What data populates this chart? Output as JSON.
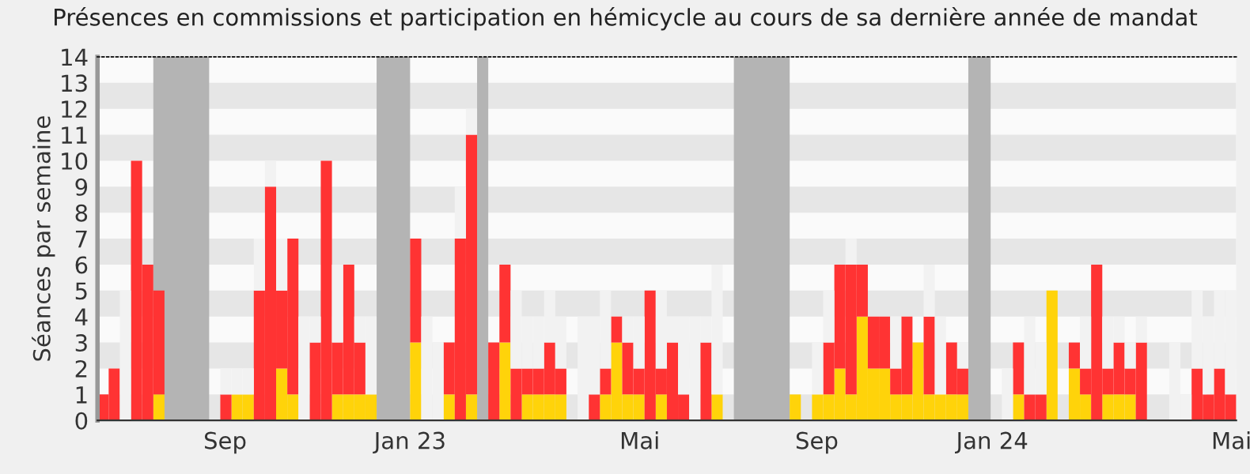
{
  "chart_data": {
    "type": "bar",
    "stacked": true,
    "title": "Présences en commissions et participation en hémicycle au cours de sa dernière année de mandat",
    "ylabel": "Séances par semaine",
    "x": [
      "2022-06-20",
      "2022-06-27",
      "2022-07-04",
      "2022-07-11",
      "2022-07-18",
      "2022-07-25",
      "2022-08-01",
      "2022-08-08",
      "2022-08-15",
      "2022-08-22",
      "2022-08-29",
      "2022-09-05",
      "2022-09-12",
      "2022-09-19",
      "2022-09-26",
      "2022-10-03",
      "2022-10-10",
      "2022-10-17",
      "2022-10-24",
      "2022-10-31",
      "2022-11-07",
      "2022-11-14",
      "2022-11-21",
      "2022-11-28",
      "2022-12-05",
      "2022-12-12",
      "2022-12-19",
      "2022-12-26",
      "2023-01-02",
      "2023-01-09",
      "2023-01-16",
      "2023-01-23",
      "2023-01-30",
      "2023-02-06",
      "2023-02-13",
      "2023-02-20",
      "2023-02-27",
      "2023-03-06",
      "2023-03-13",
      "2023-03-20",
      "2023-03-27",
      "2023-04-03",
      "2023-04-10",
      "2023-04-17",
      "2023-04-24",
      "2023-05-01",
      "2023-05-08",
      "2023-05-15",
      "2023-05-22",
      "2023-05-29",
      "2023-06-05",
      "2023-06-12",
      "2023-06-19",
      "2023-06-26",
      "2023-07-03",
      "2023-07-10",
      "2023-07-17",
      "2023-07-24",
      "2023-07-31",
      "2023-08-07",
      "2023-08-14",
      "2023-08-21",
      "2023-08-28",
      "2023-09-04",
      "2023-09-11",
      "2023-09-18",
      "2023-09-25",
      "2023-10-02",
      "2023-10-09",
      "2023-10-16",
      "2023-10-23",
      "2023-10-30",
      "2023-11-06",
      "2023-11-13",
      "2023-11-20",
      "2023-11-27",
      "2023-12-04",
      "2023-12-11",
      "2023-12-18",
      "2023-12-25",
      "2024-01-01",
      "2024-01-08",
      "2024-01-15",
      "2024-01-22",
      "2024-01-29",
      "2024-02-05",
      "2024-02-12",
      "2024-02-19",
      "2024-02-26",
      "2024-03-04",
      "2024-03-11",
      "2024-03-18",
      "2024-03-25",
      "2024-04-01",
      "2024-04-08",
      "2024-04-15",
      "2024-04-22",
      "2024-04-29",
      "2024-05-06",
      "2024-05-13",
      "2024-05-20",
      "2024-05-27"
    ],
    "series": [
      {
        "color": "#ffd30a",
        "values": [
          0,
          0,
          0,
          0,
          0,
          1,
          0,
          0,
          0,
          0,
          0,
          0,
          1,
          1,
          0,
          0,
          2,
          1,
          0,
          0,
          0,
          1,
          1,
          1,
          1,
          0,
          0,
          0,
          3,
          0,
          0,
          1,
          0,
          1,
          0,
          0,
          3,
          0,
          1,
          1,
          1,
          1,
          0,
          0,
          0,
          1,
          3,
          1,
          1,
          0,
          1,
          0,
          0,
          0,
          0,
          1,
          0,
          0,
          0,
          0,
          0,
          0,
          1,
          0,
          1,
          1,
          2,
          1,
          4,
          2,
          2,
          1,
          1,
          3,
          1,
          1,
          1,
          1,
          0,
          0,
          0,
          0,
          1,
          0,
          0,
          5,
          0,
          2,
          1,
          0,
          1,
          1,
          1,
          0,
          0,
          0,
          0,
          0,
          0,
          0,
          0,
          0
        ]
      },
      {
        "color": "#ff3333",
        "values": [
          1,
          2,
          0,
          10,
          6,
          4,
          0,
          0,
          0,
          0,
          0,
          1,
          0,
          0,
          5,
          9,
          3,
          6,
          0,
          3,
          10,
          2,
          5,
          2,
          0,
          0,
          0,
          0,
          4,
          0,
          0,
          2,
          7,
          10,
          0,
          3,
          3,
          2,
          1,
          1,
          2,
          1,
          0,
          0,
          1,
          1,
          1,
          2,
          1,
          5,
          1,
          3,
          1,
          0,
          3,
          0,
          0,
          0,
          0,
          0,
          0,
          0,
          0,
          0,
          0,
          2,
          4,
          5,
          2,
          2,
          2,
          1,
          3,
          0,
          3,
          0,
          2,
          1,
          0,
          0,
          0,
          0,
          2,
          1,
          1,
          0,
          0,
          1,
          1,
          6,
          1,
          2,
          1,
          3,
          0,
          0,
          0,
          0,
          2,
          1,
          2,
          1
        ]
      },
      {
        "color": "#f2f2f2",
        "values": [
          0,
          0,
          5,
          0,
          0,
          0,
          0,
          0,
          0,
          0,
          0,
          1,
          1,
          1,
          2,
          1,
          2,
          0,
          4,
          1,
          0,
          3,
          0,
          1,
          3,
          0,
          0,
          0,
          0,
          4,
          3,
          0,
          2,
          1,
          0,
          0,
          0,
          3,
          2,
          2,
          2,
          2,
          0,
          4,
          3,
          3,
          0,
          1,
          2,
          0,
          3,
          1,
          3,
          4,
          1,
          5,
          0,
          0,
          0,
          0,
          0,
          0,
          0,
          0,
          2,
          2,
          0,
          1,
          0,
          0,
          0,
          2,
          0,
          0,
          2,
          3,
          0,
          1,
          0,
          0,
          0,
          2,
          0,
          3,
          2,
          0,
          0,
          0,
          2,
          0,
          2,
          1,
          1,
          1,
          0,
          0,
          3,
          1,
          3,
          3,
          3,
          4
        ]
      }
    ],
    "xlim": [
      "2022-06-20",
      "2024-06-03"
    ],
    "xticks": [
      {
        "value": "2022-09-08",
        "label": "Sep"
      },
      {
        "value": "2023-01-02",
        "label": "Jan 23"
      },
      {
        "value": "2023-05-26",
        "label": "Mai"
      },
      {
        "value": "2023-09-14",
        "label": "Sep"
      },
      {
        "value": "2024-01-02",
        "label": "Jan 24"
      },
      {
        "value": "2024-05-31",
        "label": "Mai"
      }
    ],
    "ylim": [
      0,
      14
    ],
    "yticks": [
      0,
      1,
      2,
      3,
      4,
      5,
      6,
      7,
      8,
      9,
      10,
      11,
      12,
      13,
      14
    ],
    "bands": [
      {
        "axis": "x",
        "from": "2022-07-25",
        "to": "2022-08-29",
        "color": "#b4b4b4"
      },
      {
        "axis": "x",
        "from": "2022-12-12",
        "to": "2023-01-02",
        "color": "#b4b4b4"
      },
      {
        "axis": "x",
        "from": "2023-02-13",
        "to": "2023-02-20",
        "color": "#b4b4b4"
      },
      {
        "axis": "x",
        "from": "2023-07-24",
        "to": "2023-08-28",
        "color": "#b4b4b4"
      },
      {
        "axis": "x",
        "from": "2023-12-18",
        "to": "2024-01-01",
        "color": "#b4b4b4"
      }
    ]
  }
}
